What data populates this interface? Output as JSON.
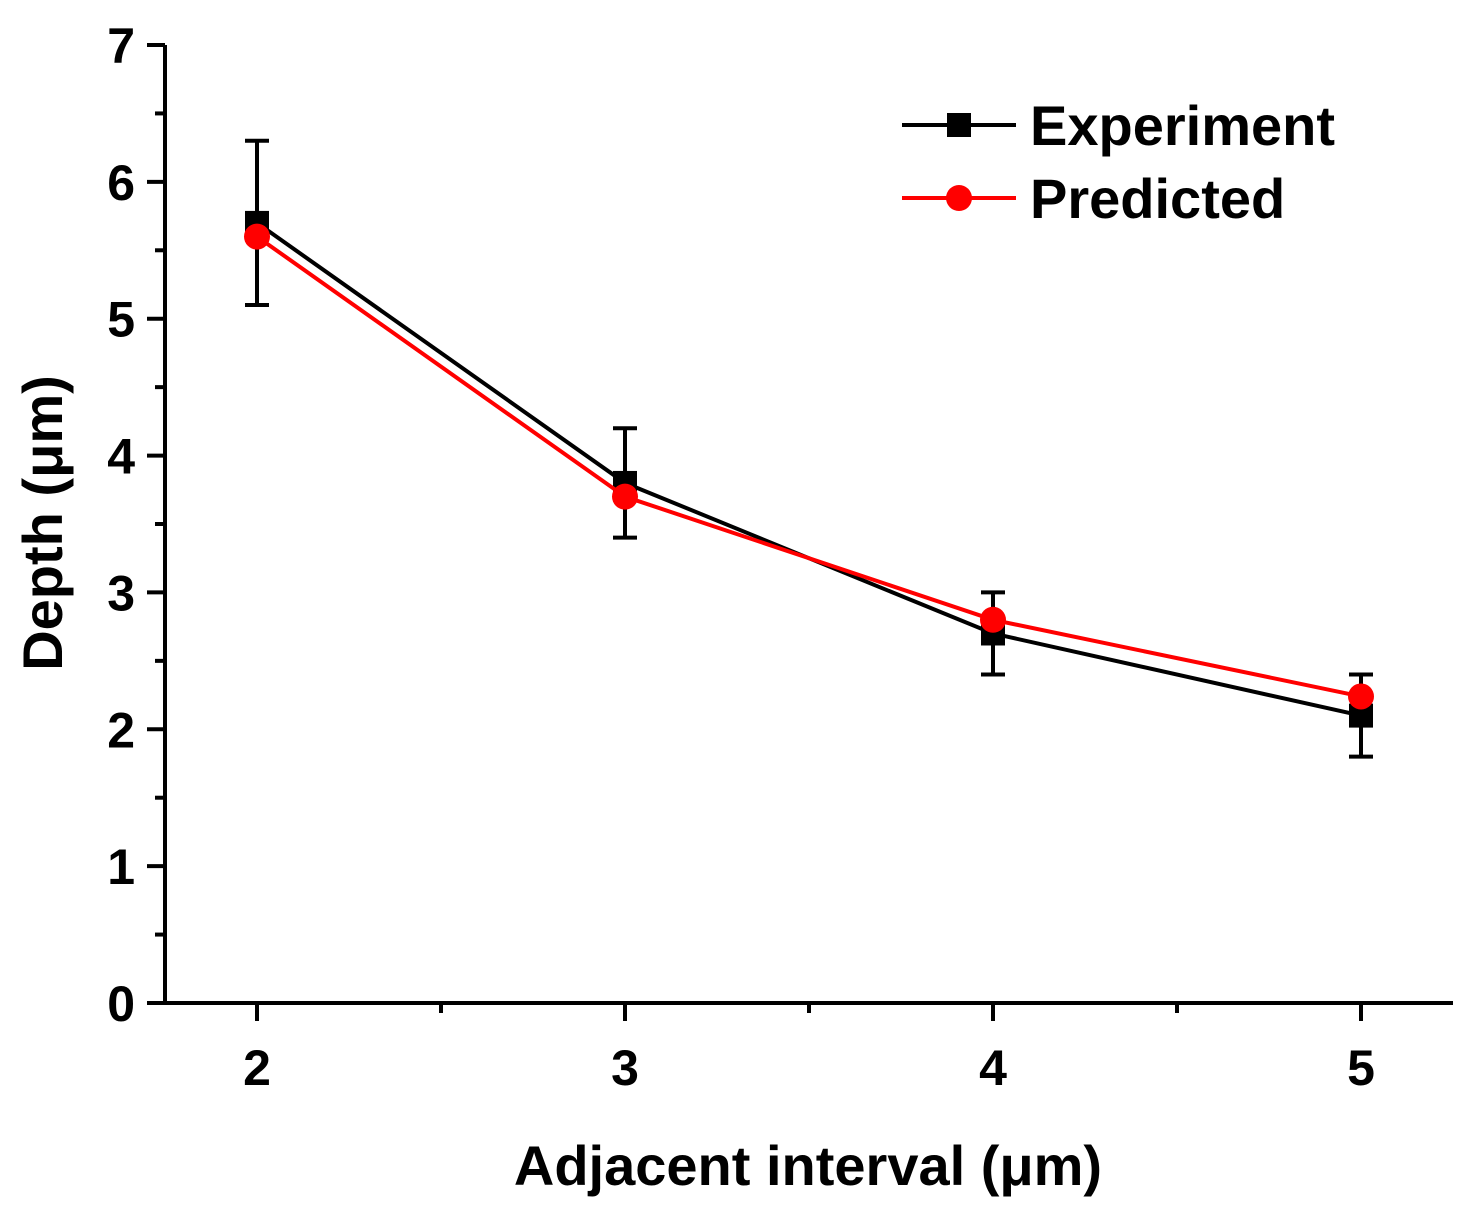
{
  "chart_data": {
    "type": "line",
    "title": "",
    "xlabel": "Adjacent interval (μm)",
    "ylabel": "Depth (μm)",
    "x": [
      2,
      3,
      4,
      5
    ],
    "xlim": [
      1.75,
      5.25
    ],
    "ylim": [
      0,
      7
    ],
    "xticks": [
      "2",
      "3",
      "4",
      "5"
    ],
    "yticks": [
      "0",
      "1",
      "2",
      "3",
      "4",
      "5",
      "6",
      "7"
    ],
    "grid": false,
    "legend_position": "top-right",
    "series": [
      {
        "name": "Experiment",
        "color": "#000000",
        "marker": "square",
        "values": [
          5.7,
          3.8,
          2.7,
          2.1
        ],
        "error": [
          0.6,
          0.4,
          0.3,
          0.3
        ]
      },
      {
        "name": "Predicted",
        "color": "#ff0000",
        "marker": "circle",
        "values": [
          5.6,
          3.7,
          2.8,
          2.24
        ]
      }
    ]
  }
}
